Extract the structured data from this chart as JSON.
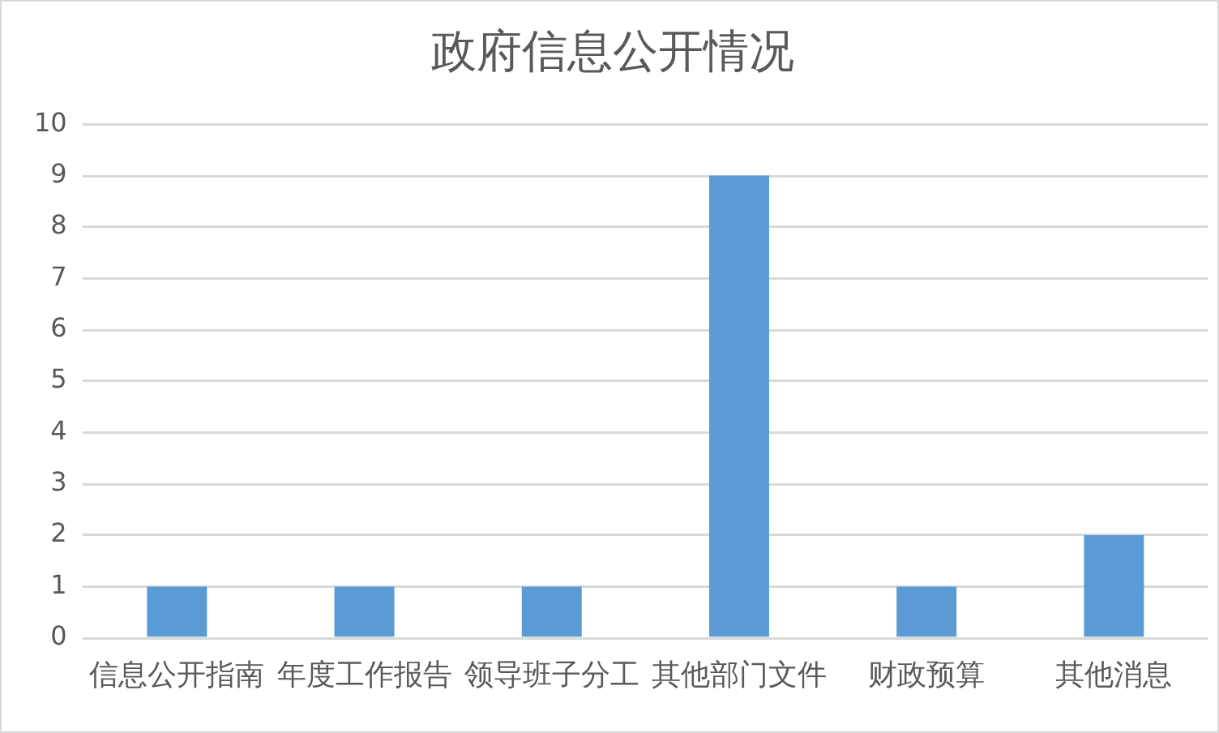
{
  "chart_data": {
    "type": "bar",
    "title": "政府信息公开情况",
    "categories": [
      "信息公开指南",
      "年度工作报告",
      "领导班子分工",
      "其他部门文件",
      "财政预算",
      "其他消息"
    ],
    "values": [
      1,
      1,
      1,
      9,
      1,
      2
    ],
    "color": "#5b9bd5",
    "ylim": [
      0,
      10
    ],
    "yticks": [
      0,
      1,
      2,
      3,
      4,
      5,
      6,
      7,
      8,
      9,
      10
    ],
    "grid": "y"
  }
}
